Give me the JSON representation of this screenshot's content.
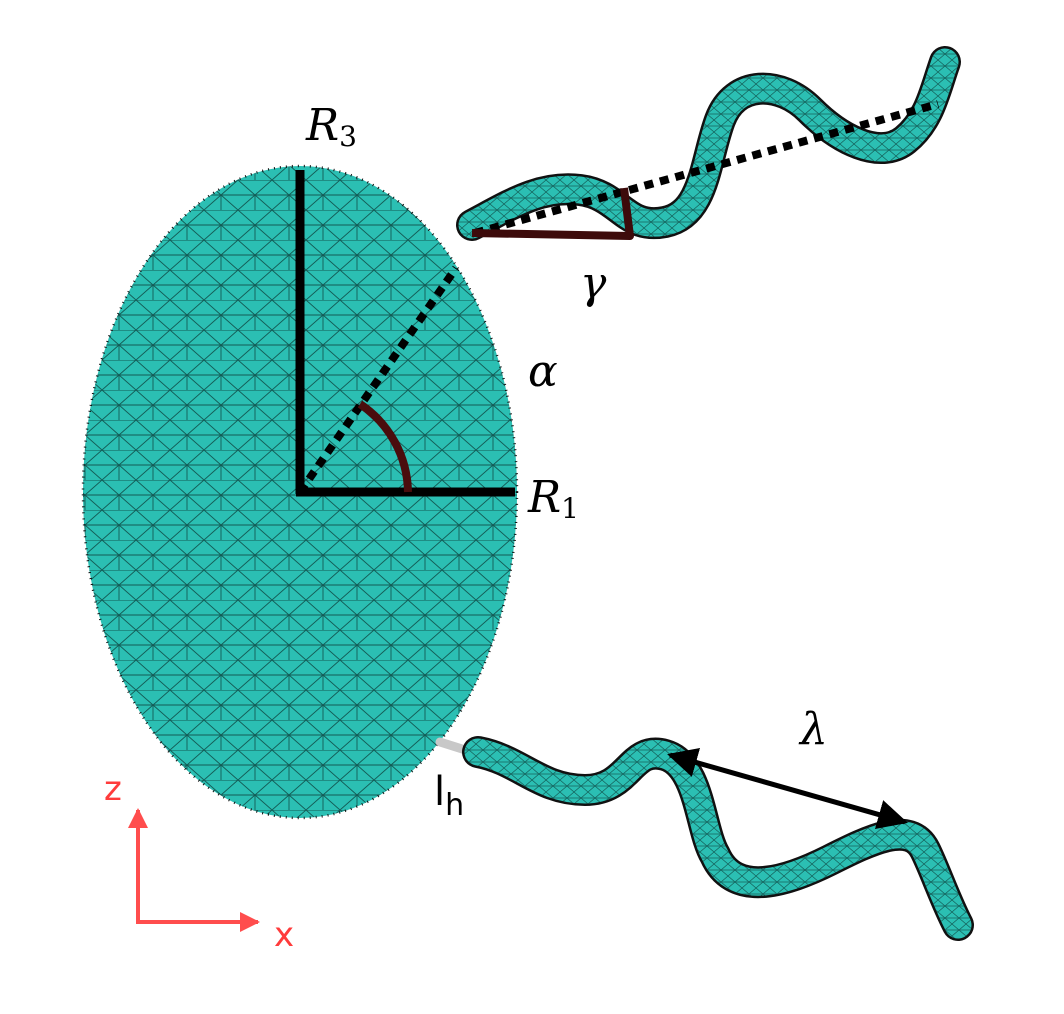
{
  "colors": {
    "body_fill": "#2bbfb3",
    "mesh_line": "#0b3a36",
    "outline": "#111111",
    "angle_arc": "#4a0d0d",
    "axis_arrow": "#ff4d4d",
    "hook": "#c8c8c8"
  },
  "labels": {
    "r3_main": "R",
    "r3_sub": "3",
    "r1_main": "R",
    "r1_sub": "1",
    "alpha": "α",
    "gamma": "γ",
    "lambda": "λ",
    "lh_main": "l",
    "lh_sub": "h"
  },
  "axes": {
    "z": "z",
    "x": "x"
  }
}
